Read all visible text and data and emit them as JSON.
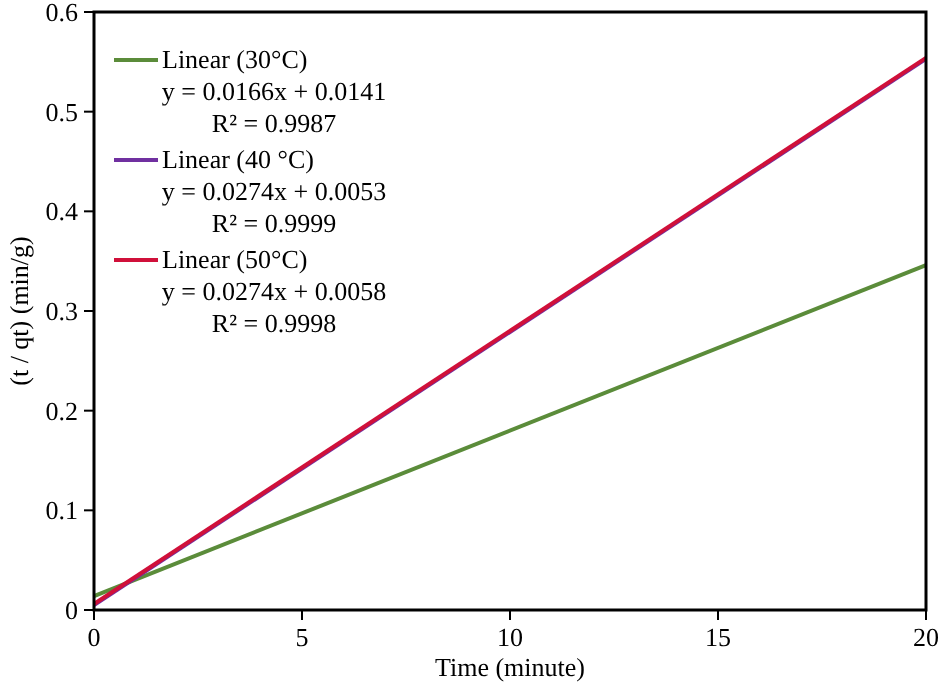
{
  "chart_data": {
    "type": "line",
    "xlabel": "Time (minute)",
    "ylabel": "(t / qt) (min/g)",
    "xlim": [
      0,
      20
    ],
    "ylim": [
      0,
      0.6
    ],
    "xticks": [
      0,
      5,
      10,
      15,
      20
    ],
    "yticks": [
      0,
      0.1,
      0.2,
      0.3,
      0.4,
      0.5,
      0.6
    ],
    "grid": false,
    "legend": "top left",
    "marker": "none",
    "line_style": "solid",
    "x": [
      0,
      20
    ],
    "series": [
      {
        "name": "Linear (30°C)",
        "color": "#5b8c3a",
        "values": [
          0.014,
          0.346
        ]
      },
      {
        "name": "Linear (40 °C)",
        "color": "#7030a0",
        "values": [
          0.005,
          0.553
        ]
      },
      {
        "name": "Linear (50°C)",
        "color": "#d0103a",
        "values": [
          0.006,
          0.554
        ]
      }
    ],
    "annotations": [
      "y = 0.0166x + 0.0141",
      "R² = 0.9987",
      "y = 0.0274x + 0.0053",
      "R² = 0.9999",
      "y = 0.0274x + 0.0058",
      "R² = 0.9998"
    ]
  }
}
